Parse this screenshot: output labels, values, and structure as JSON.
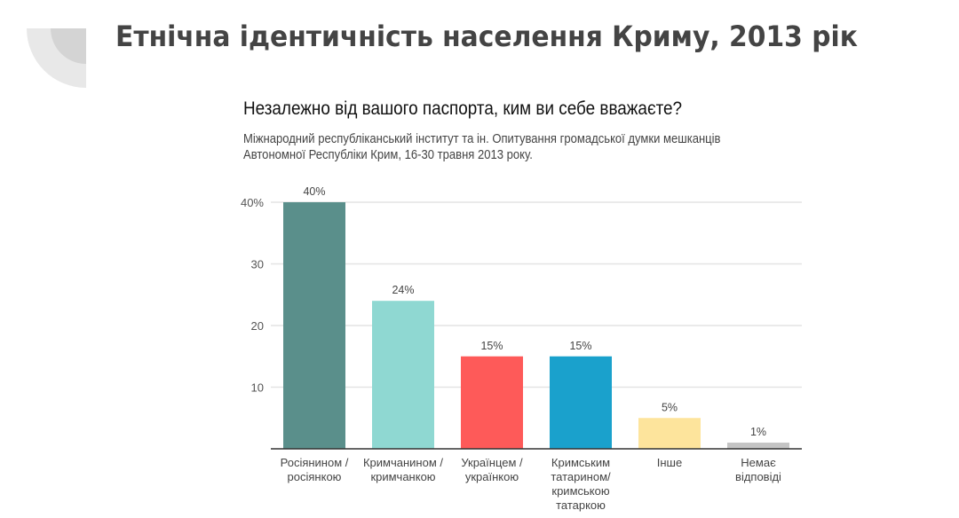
{
  "slide": {
    "title": "Етнічна ідентичність населення Криму, 2013 рік"
  },
  "chart_data": {
    "type": "bar",
    "title": "Незалежно від вашого паспорта, ким ви себе вважаєте?",
    "subtitle_lines": [
      "Міжнародний республіканський інститут та ін. Опитування громадської думки мешканців",
      "Автономної Республіки Крим, 16-30 травня 2013 року."
    ],
    "categories": [
      [
        "Росіянином /",
        "росіянкою"
      ],
      [
        "Кримчанином /",
        "кримчанкою"
      ],
      [
        "Українцем /",
        "українкою"
      ],
      [
        "Кримським",
        "татарином/",
        "кримською",
        "татаркою"
      ],
      [
        "Інше"
      ],
      [
        "Немає",
        "відповіді"
      ]
    ],
    "values": [
      40,
      24,
      15,
      15,
      5,
      1
    ],
    "data_labels": [
      "40%",
      "24%",
      "15%",
      "15%",
      "5%",
      "1%"
    ],
    "colors": [
      "#5a8f8b",
      "#8fd8d2",
      "#fe5a59",
      "#1aa1cc",
      "#fde49c",
      "#c4c4c4"
    ],
    "yticks": [
      10,
      20,
      30,
      40
    ],
    "ytick_labels": [
      "10",
      "20",
      "30",
      "40%"
    ],
    "ylim": [
      0,
      40
    ],
    "xlabel": "",
    "ylabel": "",
    "grid": true
  }
}
